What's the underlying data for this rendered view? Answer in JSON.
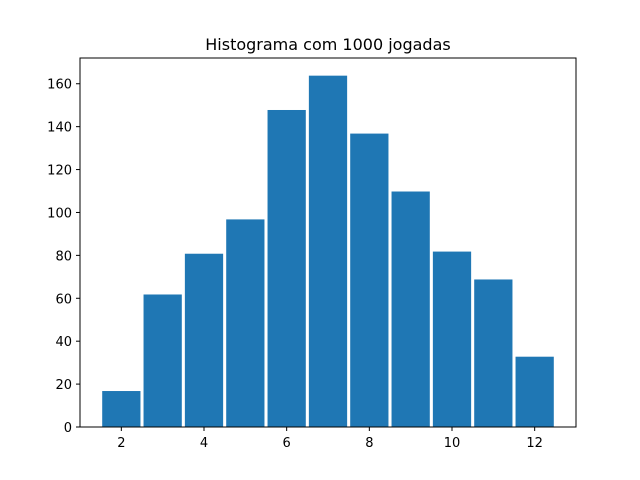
{
  "chart_data": {
    "type": "bar",
    "title": "Histograma com 1000 jogadas",
    "xlabel": "",
    "ylabel": "",
    "categories": [
      2,
      3,
      4,
      5,
      6,
      7,
      8,
      9,
      10,
      11,
      12
    ],
    "values": [
      17,
      62,
      81,
      97,
      148,
      164,
      137,
      110,
      82,
      69,
      33
    ],
    "bar_width": 0.95,
    "xlim": [
      1.0,
      13.0
    ],
    "ylim": [
      0,
      172
    ],
    "xticks": [
      2,
      4,
      6,
      8,
      10,
      12
    ],
    "yticks": [
      0,
      20,
      40,
      60,
      80,
      100,
      120,
      140,
      160
    ],
    "grid": false,
    "bar_color": "#1f77b4",
    "edge_color": "#ffffff"
  }
}
